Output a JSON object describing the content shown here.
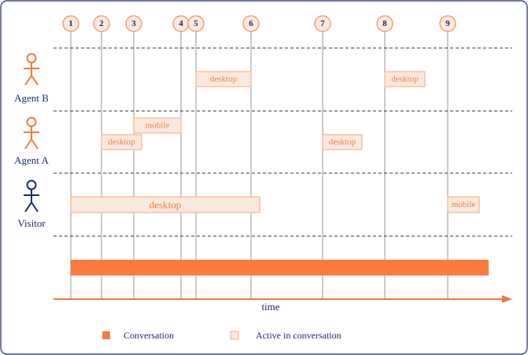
{
  "markers": [
    "1",
    "2",
    "3",
    "4",
    "5",
    "6",
    "7",
    "8",
    "9"
  ],
  "actors": {
    "agent_b": "Agent B",
    "agent_a": "Agent A",
    "visitor": "Visitor"
  },
  "segments": {
    "agent_b_1": "desktop",
    "agent_b_2": "desktop",
    "agent_a_mobile": "mobile",
    "agent_a_1": "desktop",
    "agent_a_2": "desktop",
    "visitor_1": "desktop",
    "visitor_2": "mobile"
  },
  "axis_label": "time",
  "legend": {
    "conversation": "Conversation",
    "active": "Active in conversation"
  },
  "colors": {
    "agent": "#f07a3c",
    "visitor": "#1b2a6b",
    "conversation": "#fb7b3e",
    "active_fill": "#fde8dc"
  }
}
